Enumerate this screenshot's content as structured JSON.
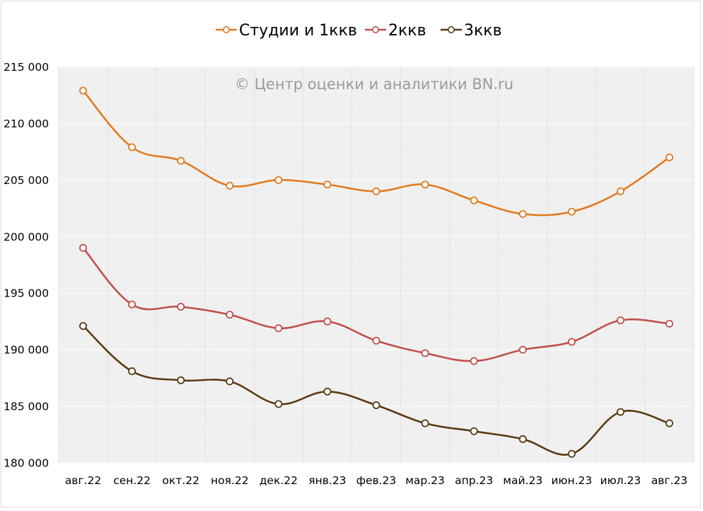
{
  "chart_data": {
    "type": "line",
    "title": "",
    "xlabel": "",
    "ylabel": "",
    "watermark": "© Центр оценки и аналитики BN.ru",
    "categories": [
      "авг.22",
      "сен.22",
      "окт.22",
      "ноя.22",
      "дек.22",
      "янв.23",
      "фев.23",
      "мар.23",
      "апр.23",
      "май.23",
      "июн.23",
      "июл.23",
      "авг.23"
    ],
    "ylim": [
      180000,
      215000
    ],
    "y_ticks": [
      180000,
      185000,
      190000,
      195000,
      200000,
      205000,
      210000,
      215000
    ],
    "y_tick_labels": [
      "180 000",
      "185 000",
      "190 000",
      "195 000",
      "200 000",
      "205 000",
      "210 000",
      "215 000"
    ],
    "grid": true,
    "smooth": true,
    "legend_position": "top-center",
    "series": [
      {
        "name": "Студии и 1ккв",
        "color": "#e07b20",
        "values": [
          212900,
          207900,
          206700,
          204500,
          205000,
          204600,
          204000,
          204600,
          203200,
          202000,
          202200,
          204000,
          207000
        ]
      },
      {
        "name": "2ккв",
        "color": "#c0504d",
        "values": [
          199000,
          194000,
          193800,
          193100,
          191900,
          192500,
          190800,
          189700,
          189000,
          190000,
          190700,
          192600,
          192300
        ]
      },
      {
        "name": "3ккв",
        "color": "#5a3a12",
        "values": [
          192100,
          188100,
          187300,
          187200,
          185200,
          186300,
          185100,
          183500,
          182800,
          182100,
          180800,
          184500,
          183500
        ]
      }
    ]
  }
}
